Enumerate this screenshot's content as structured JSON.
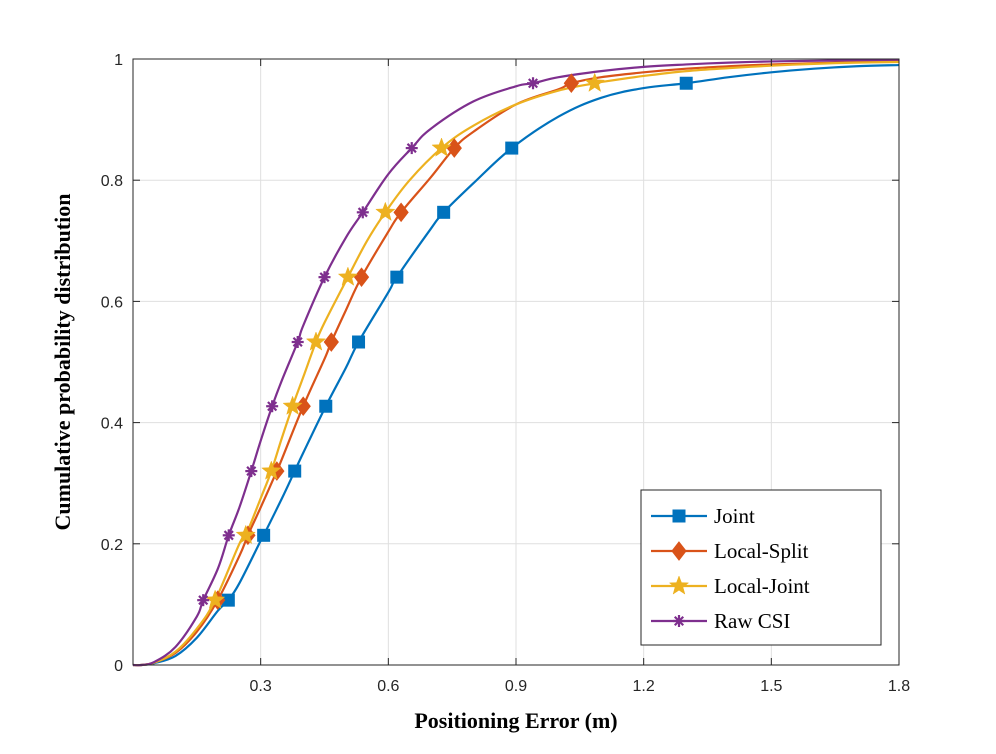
{
  "chart_data": {
    "type": "line",
    "title": "",
    "xlabel": "Positioning  Error  (m)",
    "ylabel": "Cumulative  probability  distribution",
    "xlim": [
      0,
      1.8
    ],
    "ylim": [
      0,
      1
    ],
    "xticks": [
      0.3,
      0.6,
      0.9,
      1.2,
      1.5,
      1.8
    ],
    "xtick_labels": [
      "0.3",
      "0.6",
      "0.9",
      "1.2",
      "1.5",
      "1.8"
    ],
    "yticks": [
      0,
      0.2,
      0.4,
      0.6,
      0.8,
      1
    ],
    "ytick_labels": [
      "0",
      "0.2",
      "0.4",
      "0.6",
      "0.8",
      "1"
    ],
    "grid": true,
    "legend_position": "bottom-right",
    "series": [
      {
        "name": "Joint",
        "color": "#0072BD",
        "marker": "square",
        "x": [
          0.0,
          0.02,
          0.05,
          0.1,
          0.15,
          0.2,
          0.224,
          0.25,
          0.3,
          0.307,
          0.35,
          0.38,
          0.4,
          0.453,
          0.5,
          0.53,
          0.6,
          0.62,
          0.7,
          0.73,
          0.8,
          0.89,
          1.0,
          1.1,
          1.2,
          1.3,
          1.4,
          1.5,
          1.6,
          1.7,
          1.8
        ],
        "y": [
          0.0,
          0.0,
          0.003,
          0.015,
          0.045,
          0.09,
          0.107,
          0.135,
          0.205,
          0.214,
          0.275,
          0.32,
          0.35,
          0.427,
          0.49,
          0.533,
          0.615,
          0.64,
          0.72,
          0.747,
          0.795,
          0.853,
          0.905,
          0.936,
          0.952,
          0.96,
          0.97,
          0.978,
          0.984,
          0.988,
          0.99
        ]
      },
      {
        "name": "Local-Split",
        "color": "#D95319",
        "marker": "diamond",
        "x": [
          0.0,
          0.02,
          0.05,
          0.1,
          0.15,
          0.199,
          0.25,
          0.27,
          0.3,
          0.338,
          0.35,
          0.4,
          0.45,
          0.466,
          0.5,
          0.537,
          0.6,
          0.63,
          0.7,
          0.755,
          0.8,
          0.9,
          1.0,
          1.03,
          1.1,
          1.2,
          1.3,
          1.4,
          1.5,
          1.6,
          1.7,
          1.8
        ],
        "y": [
          0.0,
          0.0,
          0.004,
          0.02,
          0.055,
          0.107,
          0.18,
          0.214,
          0.26,
          0.32,
          0.34,
          0.427,
          0.505,
          0.533,
          0.585,
          0.64,
          0.715,
          0.747,
          0.805,
          0.853,
          0.88,
          0.925,
          0.95,
          0.96,
          0.97,
          0.978,
          0.984,
          0.988,
          0.991,
          0.993,
          0.995,
          0.996
        ]
      },
      {
        "name": "Local-Joint",
        "color": "#EDB120",
        "marker": "star",
        "x": [
          0.0,
          0.02,
          0.05,
          0.1,
          0.15,
          0.193,
          0.25,
          0.265,
          0.3,
          0.325,
          0.35,
          0.375,
          0.4,
          0.43,
          0.45,
          0.505,
          0.55,
          0.593,
          0.65,
          0.725,
          0.8,
          0.9,
          1.0,
          1.085,
          1.1,
          1.2,
          1.3,
          1.4,
          1.5,
          1.6,
          1.7,
          1.8
        ],
        "y": [
          0.0,
          0.0,
          0.004,
          0.022,
          0.06,
          0.107,
          0.2,
          0.214,
          0.275,
          0.32,
          0.375,
          0.427,
          0.475,
          0.533,
          0.565,
          0.64,
          0.7,
          0.747,
          0.8,
          0.853,
          0.89,
          0.925,
          0.948,
          0.96,
          0.962,
          0.972,
          0.98,
          0.985,
          0.989,
          0.992,
          0.994,
          0.995
        ]
      },
      {
        "name": "Raw CSI",
        "color": "#7E2F8E",
        "marker": "asterisk",
        "x": [
          0.0,
          0.02,
          0.05,
          0.1,
          0.15,
          0.165,
          0.2,
          0.225,
          0.25,
          0.278,
          0.3,
          0.327,
          0.35,
          0.387,
          0.4,
          0.45,
          0.5,
          0.54,
          0.6,
          0.655,
          0.7,
          0.8,
          0.9,
          0.94,
          1.0,
          1.1,
          1.2,
          1.3,
          1.4,
          1.5,
          1.6,
          1.7,
          1.8
        ],
        "y": [
          0.0,
          0.0,
          0.005,
          0.03,
          0.08,
          0.107,
          0.16,
          0.214,
          0.26,
          0.32,
          0.37,
          0.427,
          0.47,
          0.533,
          0.56,
          0.64,
          0.705,
          0.747,
          0.81,
          0.853,
          0.885,
          0.93,
          0.955,
          0.96,
          0.97,
          0.98,
          0.987,
          0.991,
          0.994,
          0.996,
          0.997,
          0.998,
          0.999
        ]
      }
    ],
    "markers": [
      {
        "series": "Joint",
        "x": [
          0.224,
          0.307,
          0.38,
          0.453,
          0.53,
          0.62,
          0.73,
          0.89,
          1.3
        ],
        "y": [
          0.107,
          0.214,
          0.32,
          0.427,
          0.533,
          0.64,
          0.747,
          0.853,
          0.96
        ]
      },
      {
        "series": "Local-Split",
        "x": [
          0.199,
          0.27,
          0.338,
          0.4,
          0.466,
          0.537,
          0.63,
          0.755,
          1.03
        ],
        "y": [
          0.107,
          0.214,
          0.32,
          0.427,
          0.533,
          0.64,
          0.747,
          0.853,
          0.96
        ]
      },
      {
        "series": "Local-Joint",
        "x": [
          0.193,
          0.265,
          0.325,
          0.375,
          0.43,
          0.505,
          0.593,
          0.725,
          1.085
        ],
        "y": [
          0.107,
          0.214,
          0.32,
          0.427,
          0.533,
          0.64,
          0.747,
          0.853,
          0.96
        ]
      },
      {
        "series": "Raw CSI",
        "x": [
          0.165,
          0.225,
          0.278,
          0.327,
          0.387,
          0.45,
          0.54,
          0.655,
          0.94
        ],
        "y": [
          0.107,
          0.214,
          0.32,
          0.427,
          0.533,
          0.64,
          0.747,
          0.853,
          0.96
        ]
      }
    ]
  }
}
